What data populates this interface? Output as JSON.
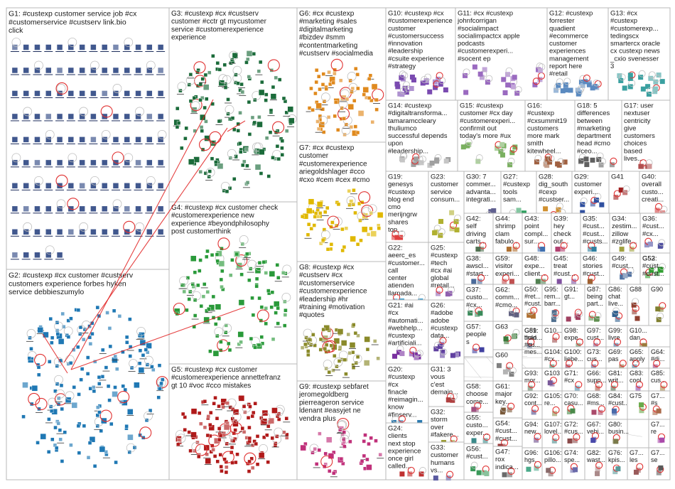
{
  "groups": [
    {
      "id": "G1",
      "label": "G1: #custexp customer service job #cx #customerservice #custserv link.bio click",
      "color": "#1f3a7a"
    },
    {
      "id": "G2",
      "label": "G2: #custexp #cx customer #custserv customers experience forbes hyken service debbieszumylo",
      "color": "#1f78b4"
    },
    {
      "id": "G3",
      "label": "G3: #custexp #cx #custserv customer #cctr gt mycustomer service #customerexperience experience",
      "color": "#1b6b3a"
    },
    {
      "id": "G4",
      "label": "G4: #custexp #cx customer check #customerexperience new experience #beyondphilosophy post customerthink",
      "color": "#2a9a3a"
    },
    {
      "id": "G5",
      "label": "G5: #custexp #cx customer #customerexperience annettefranz gt 10 #voc #cco mistakes",
      "color": "#b01a1a"
    },
    {
      "id": "G6",
      "label": "G6: #cx #custexp #marketing #sales #digitalmarketing #bizdev #smm #contentmarketing #custserv #socialmedia",
      "color": "#e08a1e"
    },
    {
      "id": "G7",
      "label": "G7: #cx #custexp customer #customerexperience ariegoldshlager #cco #cxo #cem #cex #cmo",
      "color": "#e0b800"
    },
    {
      "id": "G8",
      "label": "G8: #custexp #cx #custserv #cx #customerservice #customerexperience #leadership #hr #training #motivation #quotes",
      "color": "#8a8a2a"
    },
    {
      "id": "G9",
      "label": "G9: #custexp sebfaret jeromegoldberg pierreageron service ldenant #easyjet ne vendra plus",
      "color": "#c0307a"
    },
    {
      "id": "G10",
      "label": "G10: #custexp #cx #customerexperience customer #customersuccess #innovation #leadership #csuite experience #strategy",
      "color": "#7a4ab0"
    },
    {
      "id": "G11",
      "label": "G11: #cx #custexp johnfcorrigan #socialimpact socialimpactcx apple podcasts #customerexperi... #socent ep",
      "color": "#9a6ac0"
    },
    {
      "id": "G12",
      "label": "G12: #custexp forrester quadient #ecommerce customer experiences management report here #retail",
      "color": "#5a8ac0"
    },
    {
      "id": "G13",
      "label": "G13: #cx #custexp #customerexp... tedingscx smartercx oracle cx custexp news _cxio svenesser 3",
      "color": "#3aa0a0"
    },
    {
      "id": "G14",
      "label": "G14: #custexp #digitaltransforma... tamaramccleary thuliumco successful depends upon #leadership...",
      "color": "#a0a0a0"
    },
    {
      "id": "G15",
      "label": "G15: #custexp customer #cx day #customerexperi... confirmit out today's more #ux",
      "color": "#7ab060"
    },
    {
      "id": "G16",
      "label": "G16: #custexp #cxsummit19 customers more mark smith kitewheel...",
      "color": "#a06040"
    },
    {
      "id": "G18",
      "label": "G18: 5 differences between #marketing department head #cmo #ceo...",
      "color": "#606060"
    },
    {
      "id": "G17",
      "label": "G17: user nextuser centricity give customers choices based lives...",
      "color": "#b05050"
    },
    {
      "id": "G19",
      "label": "G19: genesys #custexp blog end cmo merijngrw shares top...",
      "color": "#e04040"
    },
    {
      "id": "G23",
      "label": "G23: customer service consum...",
      "color": "#b0b030"
    },
    {
      "id": "G30",
      "label": "G30: 7 commer... advanta... integrati...",
      "color": "#606090"
    },
    {
      "id": "G27",
      "label": "G27: #custexp tools sam...",
      "color": "#30a060"
    },
    {
      "id": "G28",
      "label": "G28: dig_south #cexp #custser...",
      "color": "#d09030"
    },
    {
      "id": "G29",
      "label": "G29: customer experi...",
      "color": "#3050a0"
    },
    {
      "id": "G41",
      "label": "G41",
      "color": "#a02020"
    },
    {
      "id": "G40",
      "label": "G40: overall custo... creati...",
      "color": "#d04040"
    },
    {
      "id": "G22",
      "label": "G22: aeerc_es #customer... call center atienden llamada...",
      "color": "#40a0d0"
    },
    {
      "id": "G25",
      "label": "G25: #custexp #tech #cx #ai global #retail...",
      "color": "#9060b0"
    },
    {
      "id": "G42",
      "label": "G42: self driving carts...",
      "color": "#507050"
    },
    {
      "id": "G44",
      "label": "G44: shrimp clam fabulo...",
      "color": "#b07030"
    },
    {
      "id": "G43",
      "label": "G43: point compl... sur...",
      "color": "#4070b0"
    },
    {
      "id": "G39",
      "label": "G39: hey check out...",
      "color": "#b04070"
    },
    {
      "id": "G35",
      "label": "G35: #cust... #cust... #custs...",
      "color": "#3080a0"
    },
    {
      "id": "G34",
      "label": "G34: zestim... zillow #zglife...",
      "color": "#a0a040"
    },
    {
      "id": "G36",
      "label": "G36: #cust... #cx...",
      "color": "#5050a0"
    },
    {
      "id": "G21",
      "label": "G21: #ai #cx #automati... #webhelp... #custexp #artificiali...",
      "color": "#7a30a0"
    },
    {
      "id": "G26",
      "label": "G26: #adobe adobe #custexp data...",
      "color": "#6040a0"
    },
    {
      "id": "G37",
      "label": "G37: custo... #cx...",
      "color": "#3a8a5a"
    },
    {
      "id": "G38",
      "label": "G38: awscl... #start... need...",
      "color": "#4a6a9a"
    },
    {
      "id": "G59",
      "label": "G59: visitor experi...",
      "color": "#c05050"
    },
    {
      "id": "G48",
      "label": "G48: expe... client...",
      "color": "#508050"
    },
    {
      "id": "G45",
      "label": "G45: treat #cust...",
      "color": "#8050a0"
    },
    {
      "id": "G46",
      "label": "G46: stories #cust...",
      "color": "#a06030"
    },
    {
      "id": "G49",
      "label": "G49: #cust...",
      "color": "#5070a0"
    },
    {
      "id": "G52",
      "label": "G52",
      "color": "#30a030"
    },
    {
      "id": "G53",
      "label": "G53: #cust... #cust...",
      "color": "#a03030"
    },
    {
      "id": "G62",
      "label": "G62: comm... #cmo...",
      "color": "#606080"
    },
    {
      "id": "G63",
      "label": "G63",
      "color": "#3a7a3a"
    },
    {
      "id": "G31",
      "label": "G31: 3 vous c'est demain...",
      "color": "#b04040"
    },
    {
      "id": "G57",
      "label": "G57: people s",
      "color": "#4040a0"
    },
    {
      "id": "G60",
      "label": "G60",
      "color": "#808080"
    },
    {
      "id": "G20",
      "label": "G20: #custexp #cx finacle #reimagin... know #finserv...",
      "color": "#2a7ab0"
    },
    {
      "id": "G32",
      "label": "G32: storm over #fakere...",
      "color": "#9a9a30"
    },
    {
      "id": "G58",
      "label": "G58: choose come...",
      "color": "#a05080"
    },
    {
      "id": "G55",
      "label": "G55: custo... exper...",
      "color": "#3a8a8a"
    },
    {
      "id": "G61",
      "label": "G61: major key...",
      "color": "#7a5a3a"
    },
    {
      "id": "G24",
      "label": "G24: clients next stop experience once girl called...",
      "color": "#c03030"
    },
    {
      "id": "G33",
      "label": "G33: customer humans vs...",
      "color": "#5a5aa0"
    },
    {
      "id": "G56",
      "label": "G56: #cust...",
      "color": "#3a9a5a"
    },
    {
      "id": "G54",
      "label": "G54: #cust... #cust...",
      "color": "#9a3a3a"
    },
    {
      "id": "G47",
      "label": "G47: rox indica...",
      "color": "#6a6a6a"
    },
    {
      "id": "G50",
      "label": "G50: #ret... #cust...",
      "color": "#b07030"
    },
    {
      "id": "G95",
      "label": "G95: rem... barr...",
      "color": "#507090"
    },
    {
      "id": "G91",
      "label": "G91: gt...",
      "color": "#a04060"
    },
    {
      "id": "G87",
      "label": "G87: being part...",
      "color": "#609050"
    },
    {
      "id": "G86",
      "label": "G86: chat live...",
      "color": "#306090"
    },
    {
      "id": "G88",
      "label": "G88",
      "color": "#904030"
    },
    {
      "id": "G90",
      "label": "G90",
      "color": "#808030"
    },
    {
      "id": "G89",
      "label": "G89: than...",
      "color": "#506080"
    },
    {
      "id": "G10x",
      "label": "G10...",
      "color": "#a05050"
    },
    {
      "id": "G98",
      "label": "G98: expe... crea...",
      "color": "#5a8a5a"
    },
    {
      "id": "G97",
      "label": "G97: cust... scor...",
      "color": "#8a5a8a"
    },
    {
      "id": "G99",
      "label": "G99: livre blan...",
      "color": "#3a6a9a"
    },
    {
      "id": "G10y",
      "label": "G10... dan...",
      "color": "#9a7a3a"
    },
    {
      "id": "G51",
      "label": "G51: hold #cu... mes...",
      "color": "#6a3a8a"
    },
    {
      "id": "G104",
      "label": "G104: #cx...",
      "color": "#3a8a6a"
    },
    {
      "id": "G100",
      "label": "G100: liebe...",
      "color": "#8a3a5a"
    },
    {
      "id": "G73",
      "label": "G73: cus... #cus...",
      "color": "#5a5a8a"
    },
    {
      "id": "G69",
      "label": "G69: pas enc...",
      "color": "#8a6a3a"
    },
    {
      "id": "G65",
      "label": "G65: apply job...",
      "color": "#3a7a9a"
    },
    {
      "id": "G64",
      "label": "G64: #di... #ag...",
      "color": "#9a3a7a"
    },
    {
      "id": "G93",
      "label": "G93: mor...",
      "color": "#5a7a5a"
    },
    {
      "id": "G103",
      "label": "G103",
      "color": "#7a5a9a"
    },
    {
      "id": "G71",
      "label": "G71: #cx",
      "color": "#4a8aaa"
    },
    {
      "id": "G66",
      "label": "G66: supp...",
      "color": "#aa5a4a"
    },
    {
      "id": "G81",
      "label": "G81: writ... cus...",
      "color": "#4a6a4a"
    },
    {
      "id": "G83",
      "label": "G83: cool way...",
      "color": "#8a4aaa"
    },
    {
      "id": "G85",
      "label": "G85: cus... spe...",
      "color": "#aa8a4a"
    },
    {
      "id": "G92",
      "label": "G92: cont...",
      "color": "#4a4a8a"
    },
    {
      "id": "G105",
      "label": "G105: re...",
      "color": "#8a8a4a"
    },
    {
      "id": "G70",
      "label": "G70: casu...",
      "color": "#4a8a4a"
    },
    {
      "id": "G68",
      "label": "G68: #ms...",
      "color": "#aa4a6a"
    },
    {
      "id": "G84",
      "label": "G84: #cust...",
      "color": "#4a6aaa"
    },
    {
      "id": "G75",
      "label": "G75",
      "color": "#6aaa4a"
    },
    {
      "id": "G7x",
      "label": "G7... #s",
      "color": "#aa6a4a"
    },
    {
      "id": "G94",
      "label": "G94: new...",
      "color": "#6a4a8a"
    },
    {
      "id": "G107",
      "label": "G107: lovel...",
      "color": "#4a8a8a"
    },
    {
      "id": "G72",
      "label": "G72: #cus...",
      "color": "#8a4a4a"
    },
    {
      "id": "G67",
      "label": "G67: vehi...",
      "color": "#4a4aaa"
    },
    {
      "id": "G80",
      "label": "G80: busin...",
      "color": "#7a7a4a"
    },
    {
      "id": "G7y",
      "label": "G7... re",
      "color": "#aa4aaa"
    },
    {
      "id": "G96",
      "label": "G96: hgs...",
      "color": "#4aaa8a"
    },
    {
      "id": "G106",
      "label": "G106: pillo...",
      "color": "#8a6a6a"
    },
    {
      "id": "G74",
      "label": "G74: spe...",
      "color": "#6a6aaa"
    },
    {
      "id": "G82",
      "label": "G82: wast...",
      "color": "#aa8a8a"
    },
    {
      "id": "G76",
      "label": "G76: kpis...",
      "color": "#5a9a9a"
    },
    {
      "id": "G7z",
      "label": "G7... les",
      "color": "#9a5a5a"
    },
    {
      "id": "G7w",
      "label": "G7... se",
      "color": "#5a5a5a"
    }
  ]
}
